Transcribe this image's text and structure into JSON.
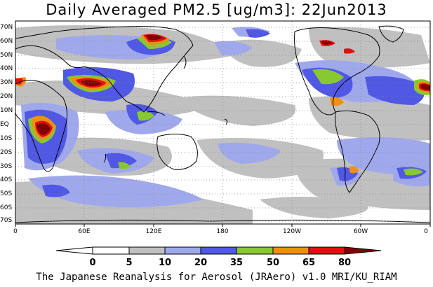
{
  "title": "Daily Averaged PM2.5 [ug/m3]: 22Jun2013",
  "lat_labels": [
    "70N",
    "60N",
    "50N",
    "40N",
    "30N",
    "20N",
    "10N",
    "EQ",
    "10S",
    "20S",
    "30S",
    "40S",
    "50S",
    "60S",
    "70S"
  ],
  "lon_labels": [
    "0",
    "60E",
    "120E",
    "180",
    "120W",
    "60W",
    "0"
  ],
  "legend": {
    "ticks": [
      "0",
      "5",
      "10",
      "20",
      "35",
      "50",
      "65",
      "80"
    ],
    "colors": [
      "#ffffff",
      "#c0c0c0",
      "#a0a8ec",
      "#5058e4",
      "#88c830",
      "#f09010",
      "#e01010",
      "#800000"
    ]
  },
  "credit": "The Japanese Reanalysis for Aerosol (JRAero) v1.0 MRI/KU_RIAM"
}
